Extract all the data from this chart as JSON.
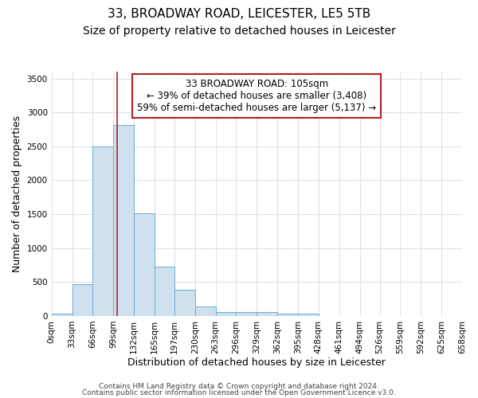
{
  "title": "33, BROADWAY ROAD, LEICESTER, LE5 5TB",
  "subtitle": "Size of property relative to detached houses in Leicester",
  "xlabel": "Distribution of detached houses by size in Leicester",
  "ylabel": "Number of detached properties",
  "property_size": 105,
  "annotation_line1": "33 BROADWAY ROAD: 105sqm",
  "annotation_line2": "← 39% of detached houses are smaller (3,408)",
  "annotation_line3": "59% of semi-detached houses are larger (5,137) →",
  "bar_edges": [
    0,
    33,
    66,
    99,
    132,
    165,
    197,
    230,
    263,
    296,
    329,
    362,
    395,
    428,
    461,
    494,
    526,
    559,
    592,
    625,
    658
  ],
  "bar_heights": [
    30,
    470,
    2500,
    2820,
    1510,
    730,
    390,
    145,
    60,
    55,
    55,
    35,
    30,
    0,
    0,
    0,
    0,
    0,
    0,
    0
  ],
  "bar_color": "#cfe0ef",
  "bar_edge_color": "#6aafd6",
  "bar_linewidth": 0.7,
  "vline_color": "#b22222",
  "vline_linewidth": 1.2,
  "bg_color": "#ffffff",
  "plot_bg_color": "#ffffff",
  "grid_color": "#d0dce8",
  "ylim": [
    0,
    3600
  ],
  "yticks": [
    0,
    500,
    1000,
    1500,
    2000,
    2500,
    3000,
    3500
  ],
  "annotation_box_facecolor": "#ffffff",
  "annotation_box_edgecolor": "#b22222",
  "footer_line1": "Contains HM Land Registry data © Crown copyright and database right 2024.",
  "footer_line2": "Contains public sector information licensed under the Open Government Licence v3.0.",
  "title_fontsize": 11,
  "subtitle_fontsize": 10,
  "axis_label_fontsize": 9,
  "tick_fontsize": 7.5,
  "annotation_fontsize": 8.5,
  "footer_fontsize": 6.5
}
